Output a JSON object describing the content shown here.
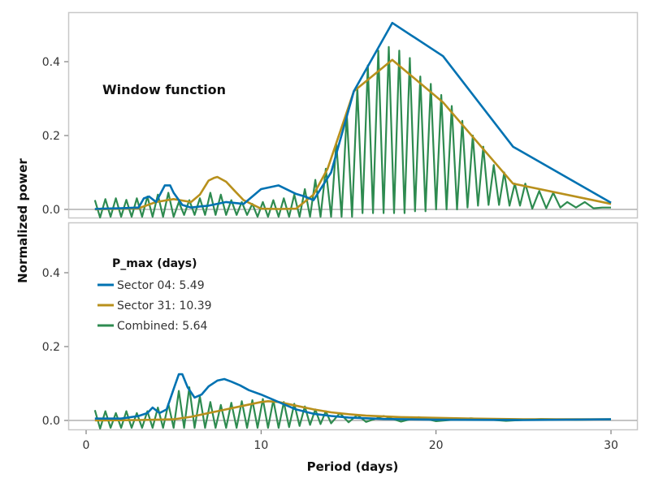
{
  "chart_data": [
    {
      "type": "line",
      "panel": "top",
      "annotation": "Window function",
      "xlim": [
        -1,
        31
      ],
      "ylim": [
        -0.025,
        0.525
      ],
      "yticks": [
        0.0,
        0.2,
        0.4
      ],
      "series": [
        {
          "color": "#0072b2",
          "x": [
            0.5,
            1,
            2,
            3,
            3.3,
            3.6,
            4,
            4.5,
            4.8,
            5,
            5.5,
            6,
            6.5,
            7,
            8,
            9,
            10,
            11,
            12,
            12.5,
            13,
            14,
            15.3,
            17.5,
            20.4,
            24.4,
            30
          ],
          "y": [
            0.001,
            0.002,
            0.003,
            0.005,
            0.03,
            0.035,
            0.02,
            0.065,
            0.065,
            0.045,
            0.012,
            0.005,
            0.008,
            0.01,
            0.02,
            0.015,
            0.055,
            0.065,
            0.042,
            0.035,
            0.025,
            0.1,
            0.32,
            0.505,
            0.415,
            0.17,
            0.018
          ]
        },
        {
          "color": "#b8901c",
          "x": [
            0.5,
            3,
            4,
            5,
            6,
            6.5,
            7,
            7.3,
            7.5,
            8,
            8.5,
            9,
            10,
            11,
            12,
            13,
            13.8,
            15.3,
            17.5,
            20.4,
            24.4,
            30
          ],
          "y": [
            0.0,
            0.003,
            0.02,
            0.028,
            0.02,
            0.04,
            0.078,
            0.085,
            0.088,
            0.075,
            0.05,
            0.025,
            0.002,
            0.001,
            0.002,
            0.04,
            0.11,
            0.32,
            0.405,
            0.29,
            0.07,
            0.015
          ]
        },
        {
          "color": "#2e8b50",
          "x": [
            0.5,
            0.8,
            1.1,
            1.4,
            1.7,
            2.0,
            2.3,
            2.6,
            2.9,
            3.2,
            3.5,
            3.8,
            4.1,
            4.4,
            4.7,
            5.0,
            5.3,
            5.6,
            5.9,
            6.2,
            6.5,
            6.8,
            7.1,
            7.4,
            7.7,
            8.0,
            8.3,
            8.6,
            8.9,
            9.2,
            9.5,
            9.8,
            10.1,
            10.4,
            10.7,
            11.0,
            11.3,
            11.6,
            11.9,
            12.2,
            12.5,
            12.8,
            13.1,
            13.4,
            13.7,
            14.0,
            14.3,
            14.6,
            14.9,
            15.2,
            15.5,
            15.8,
            16.1,
            16.4,
            16.7,
            17.0,
            17.3,
            17.6,
            17.9,
            18.2,
            18.5,
            18.8,
            19.1,
            19.4,
            19.7,
            20.0,
            20.3,
            20.6,
            20.9,
            21.2,
            21.5,
            21.8,
            22.1,
            22.4,
            22.7,
            23.0,
            23.3,
            23.6,
            23.9,
            24.2,
            24.5,
            24.8,
            25.1,
            25.5,
            25.9,
            26.3,
            26.7,
            27.1,
            27.5,
            28.0,
            28.5,
            29.0,
            29.5,
            30.0
          ],
          "y": [
            0.025,
            -0.022,
            0.028,
            -0.02,
            0.03,
            -0.02,
            0.026,
            -0.02,
            0.03,
            -0.02,
            0.035,
            -0.02,
            0.04,
            -0.02,
            0.045,
            -0.02,
            0.02,
            -0.015,
            0.025,
            -0.015,
            0.03,
            -0.015,
            0.045,
            -0.015,
            0.04,
            -0.015,
            0.025,
            -0.015,
            0.02,
            -0.015,
            0.015,
            -0.02,
            0.02,
            -0.02,
            0.025,
            -0.02,
            0.03,
            -0.02,
            0.04,
            -0.02,
            0.055,
            -0.02,
            0.08,
            -0.02,
            0.11,
            -0.02,
            0.18,
            -0.02,
            0.26,
            -0.02,
            0.33,
            -0.01,
            0.39,
            -0.01,
            0.43,
            -0.01,
            0.44,
            -0.01,
            0.43,
            -0.01,
            0.41,
            -0.005,
            0.36,
            -0.005,
            0.34,
            0.0,
            0.31,
            0.0,
            0.28,
            0.0,
            0.24,
            0.005,
            0.2,
            0.01,
            0.17,
            0.012,
            0.12,
            0.012,
            0.1,
            0.01,
            0.07,
            0.01,
            0.07,
            0.002,
            0.05,
            0.003,
            0.045,
            0.005,
            0.02,
            0.005,
            0.02,
            0.003,
            0.005,
            0.005
          ]
        }
      ]
    },
    {
      "type": "line",
      "panel": "bottom",
      "xlim": [
        -1,
        31
      ],
      "ylim": [
        -0.025,
        0.525
      ],
      "xticks": [
        0,
        10,
        20,
        30
      ],
      "yticks": [
        0.0,
        0.2,
        0.4
      ],
      "xlabel": "Period (days)",
      "ylabel": "Normalized power",
      "legend": {
        "title": "P_max (days)",
        "placement": "top-left",
        "entries": [
          "Sector 04: 5.49",
          "Sector 31: 10.39",
          "Combined: 5.64"
        ]
      },
      "series": [
        {
          "name": "Sector 04: 5.49",
          "color": "#0072b2",
          "x": [
            0.5,
            2,
            3,
            3.5,
            3.8,
            4.2,
            4.6,
            5.0,
            5.3,
            5.5,
            5.8,
            6.2,
            6.6,
            7.0,
            7.5,
            7.9,
            8.3,
            8.8,
            9.3,
            10,
            11,
            12,
            13,
            14,
            15,
            17,
            20,
            25,
            30
          ],
          "y": [
            0.005,
            0.005,
            0.012,
            0.02,
            0.035,
            0.02,
            0.03,
            0.085,
            0.125,
            0.125,
            0.09,
            0.062,
            0.07,
            0.092,
            0.108,
            0.112,
            0.105,
            0.095,
            0.082,
            0.07,
            0.05,
            0.03,
            0.018,
            0.012,
            0.008,
            0.004,
            0.002,
            0.001,
            0.003
          ]
        },
        {
          "name": "Sector 31: 10.39",
          "color": "#b8901c",
          "x": [
            0.5,
            3,
            5,
            6,
            7,
            8,
            9,
            10,
            10.4,
            11,
            12,
            13,
            14,
            15,
            16,
            18,
            20,
            22,
            25,
            30
          ],
          "y": [
            0.0,
            0.001,
            0.003,
            0.01,
            0.02,
            0.03,
            0.04,
            0.05,
            0.052,
            0.05,
            0.04,
            0.03,
            0.022,
            0.017,
            0.013,
            0.009,
            0.007,
            0.005,
            0.003,
            0.003
          ]
        },
        {
          "name": "Combined: 5.64",
          "color": "#2e8b50",
          "x": [
            0.5,
            0.8,
            1.1,
            1.4,
            1.7,
            2.0,
            2.3,
            2.6,
            2.9,
            3.2,
            3.5,
            3.8,
            4.1,
            4.4,
            4.7,
            5.0,
            5.3,
            5.6,
            5.9,
            6.2,
            6.5,
            6.8,
            7.1,
            7.4,
            7.7,
            8.0,
            8.3,
            8.6,
            8.9,
            9.2,
            9.5,
            9.8,
            10.1,
            10.4,
            10.7,
            11.0,
            11.3,
            11.6,
            11.9,
            12.2,
            12.5,
            12.8,
            13.1,
            13.4,
            13.7,
            14.0,
            14.5,
            15.0,
            15.5,
            16.0,
            17.0,
            18.0,
            19.0,
            20.0,
            22.0,
            24.0,
            26.0,
            28.0,
            30.0
          ],
          "y": [
            0.028,
            -0.022,
            0.025,
            -0.02,
            0.02,
            -0.02,
            0.025,
            -0.02,
            0.02,
            -0.02,
            0.025,
            -0.02,
            0.035,
            -0.02,
            0.045,
            -0.02,
            0.08,
            -0.02,
            0.09,
            -0.02,
            0.065,
            -0.02,
            0.05,
            -0.02,
            0.042,
            -0.02,
            0.048,
            -0.02,
            0.052,
            -0.02,
            0.055,
            -0.02,
            0.058,
            -0.02,
            0.055,
            -0.02,
            0.05,
            -0.018,
            0.045,
            -0.015,
            0.038,
            -0.012,
            0.03,
            -0.01,
            0.025,
            -0.008,
            0.02,
            -0.005,
            0.015,
            -0.004,
            0.012,
            -0.003,
            0.009,
            -0.002,
            0.006,
            -0.001,
            0.004,
            0.002,
            0.003
          ]
        }
      ]
    }
  ]
}
